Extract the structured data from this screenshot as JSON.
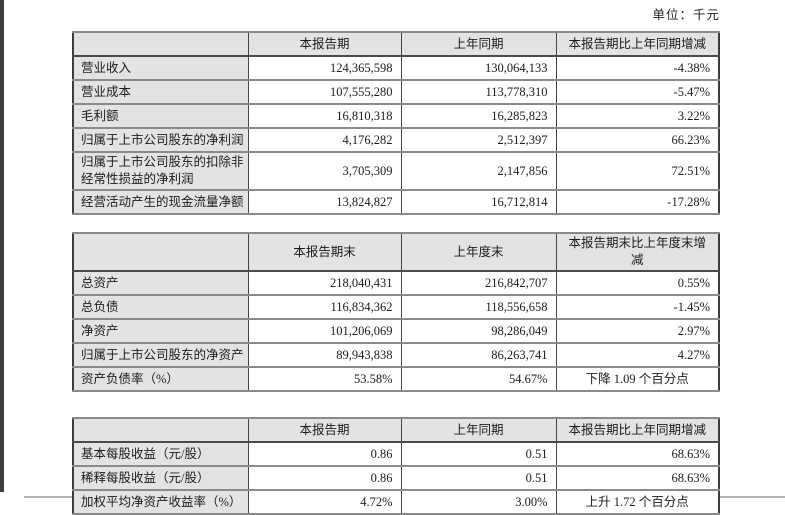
{
  "page": {
    "unit_label": "单位：千元"
  },
  "tables": [
    {
      "headers": [
        "",
        "本报告期",
        "上年同期",
        "本报告期比上年同期增减"
      ],
      "rows": [
        [
          "营业收入",
          "124,365,598",
          "130,064,133",
          "-4.38%"
        ],
        [
          "营业成本",
          "107,555,280",
          "113,778,310",
          "-5.47%"
        ],
        [
          "毛利额",
          "16,810,318",
          "16,285,823",
          "3.22%"
        ],
        [
          "归属于上市公司股东的净利润",
          "4,176,282",
          "2,512,397",
          "66.23%"
        ],
        [
          "归属于上市公司股东的扣除非经常性损益的净利润",
          "3,705,309",
          "2,147,856",
          "72.51%"
        ],
        [
          "经营活动产生的现金流量净额",
          "13,824,827",
          "16,712,814",
          "-17.28%"
        ]
      ]
    },
    {
      "headers": [
        "",
        "本报告期末",
        "上年度末",
        "本报告期末比上年度末增减"
      ],
      "rows": [
        [
          "总资产",
          "218,040,431",
          "216,842,707",
          "0.55%"
        ],
        [
          "总负债",
          "116,834,362",
          "118,556,658",
          "-1.45%"
        ],
        [
          "净资产",
          "101,206,069",
          "98,286,049",
          "2.97%"
        ],
        [
          "归属于上市公司股东的净资产",
          "89,943,838",
          "86,263,741",
          "4.27%"
        ],
        [
          "资产负债率（%）",
          "53.58%",
          "54.67%",
          "下降 1.09 个百分点"
        ]
      ]
    },
    {
      "headers": [
        "",
        "本报告期",
        "上年同期",
        "本报告期比上年同期增减"
      ],
      "rows": [
        [
          "基本每股收益（元/股）",
          "0.86",
          "0.51",
          "68.63%"
        ],
        [
          "稀释每股收益（元/股）",
          "0.86",
          "0.51",
          "68.63%"
        ],
        [
          "加权平均净资产收益率（%）",
          "4.72%",
          "3.00%",
          "上升 1.72 个百分点"
        ]
      ]
    }
  ]
}
